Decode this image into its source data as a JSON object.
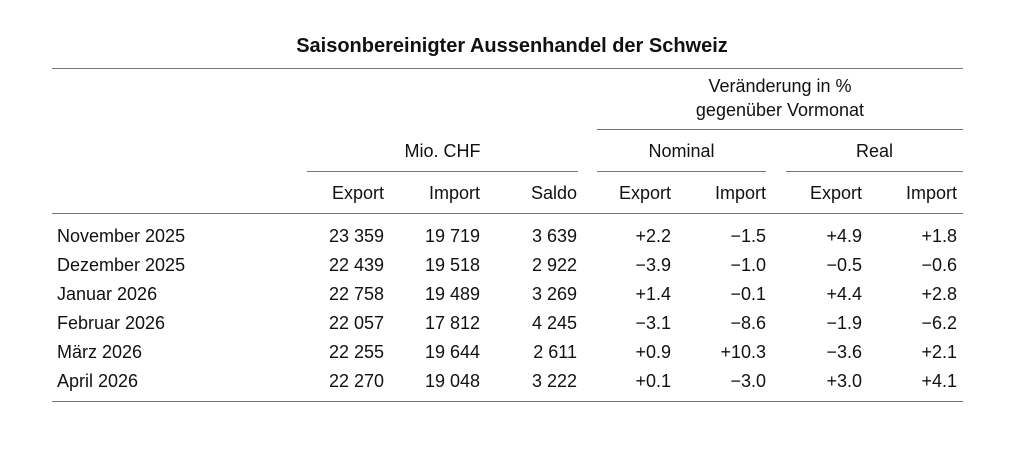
{
  "title": "Saisonbereinigter Aussenhandel der Schweiz",
  "header": {
    "change_line1": "Veränderung in %",
    "change_line2": "gegenüber Vormonat",
    "group_mio": "Mio. CHF",
    "group_nominal": "Nominal",
    "group_real": "Real",
    "columns": [
      "Export",
      "Import",
      "Saldo",
      "Export",
      "Import",
      "Export",
      "Import"
    ]
  },
  "rows": [
    {
      "label": "November 2025",
      "values": [
        "23 359",
        "19 719",
        "3 639",
        "+2.2",
        "−1.5",
        "+4.9",
        "+1.8"
      ]
    },
    {
      "label": "Dezember 2025",
      "values": [
        "22 439",
        "19 518",
        "2 922",
        "−3.9",
        "−1.0",
        "−0.5",
        "−0.6"
      ]
    },
    {
      "label": "Januar 2026",
      "values": [
        "22 758",
        "19 489",
        "3 269",
        "+1.4",
        "−0.1",
        "+4.4",
        "+2.8"
      ]
    },
    {
      "label": "Februar 2026",
      "values": [
        "22 057",
        "17 812",
        "4 245",
        "−3.1",
        "−8.6",
        "−1.9",
        "−6.2"
      ]
    },
    {
      "label": "März 2026",
      "values": [
        "22 255",
        "19 644",
        "2 611",
        "+0.9",
        "+10.3",
        "−3.6",
        "+2.1"
      ]
    },
    {
      "label": "April 2026",
      "values": [
        "22 270",
        "19 048",
        "3 222",
        "+0.1",
        "−3.0",
        "+3.0",
        "+4.1"
      ]
    }
  ]
}
